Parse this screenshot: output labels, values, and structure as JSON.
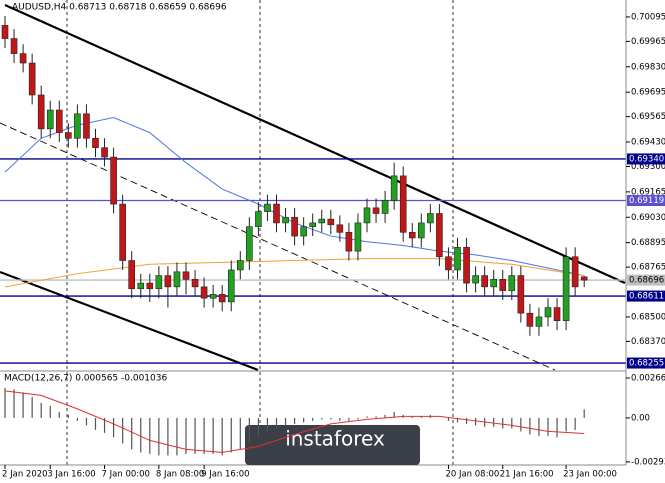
{
  "chart_data": {
    "type": "candlestick",
    "title": "AUDUSD,H4  0.68713 0.68718 0.68659 0.68696",
    "watermark": "instaforex",
    "ylim": [
      0.68218,
      0.70185
    ],
    "yticks": [
      0.70095,
      {
        "value": 0.69965,
        "label": "0.69965"
      },
      {
        "value": 0.6983,
        "label": "0.69830"
      },
      0.69695,
      0.69565,
      {
        "value": 0.6943,
        "label": "0.69430"
      },
      {
        "value": 0.693,
        "label": "0.69300"
      },
      0.69165,
      {
        "value": 0.6903,
        "label": "0.69030"
      },
      0.68895,
      0.68765,
      {
        "value": 0.685,
        "label": "0.68500"
      },
      {
        "value": 0.6837,
        "label": "0.68370"
      }
    ],
    "levels": [
      {
        "value": 0.6934,
        "label": "0.69340",
        "color": "#00008b"
      },
      {
        "value": 0.69119,
        "label": "0.69119",
        "color": "#5a4fcf"
      },
      {
        "value": 0.68611,
        "label": "0.68611",
        "color": "#00008b"
      },
      {
        "value": 0.68255,
        "label": "0.68255",
        "color": "#00008b"
      },
      {
        "value": 0.68696,
        "label": "0.68696",
        "color": "#c0c0c0"
      }
    ],
    "categories": [
      "2 Jan 2020",
      null,
      null,
      null,
      null,
      "3 Jan 16:00",
      null,
      null,
      null,
      null,
      null,
      "7 Jan 00:00",
      null,
      null,
      null,
      null,
      null,
      "8 Jan 08:00",
      null,
      null,
      null,
      null,
      "9 Jan 16:00",
      null,
      null,
      null,
      null,
      null,
      null,
      null,
      null,
      null,
      null,
      null,
      null,
      null,
      null,
      null,
      null,
      null,
      null,
      null,
      null,
      null,
      null,
      null,
      null,
      null,
      null,
      "20 Jan 08:00",
      null,
      null,
      null,
      null,
      null,
      "21 Jan 16:00",
      null,
      null,
      null,
      null,
      null,
      null,
      "23 Jan 00:00",
      null,
      null
    ],
    "up_color": "#22a022",
    "down_color": "#c01818",
    "open": [
      0.7005,
      0.6998,
      0.699,
      0.6985,
      0.6968,
      0.695,
      0.696,
      0.6948,
      0.6945,
      0.6958,
      0.6945,
      0.694,
      0.6935,
      0.691,
      0.688,
      0.6865,
      0.6868,
      0.6865,
      0.6872,
      0.6866,
      0.6874,
      0.687,
      0.6866,
      0.686,
      0.6862,
      0.6858,
      0.6875,
      0.688,
      0.6898,
      0.6906,
      0.691,
      0.69,
      0.6903,
      0.6893,
      0.6898,
      0.69,
      0.6902,
      0.6899,
      0.6895,
      0.6885,
      0.69,
      0.6908,
      0.6905,
      0.6912,
      0.6925,
      0.6895,
      0.6892,
      0.69,
      0.6905,
      0.6882,
      0.6875,
      0.6887,
      0.6868,
      0.6872,
      0.6866,
      0.687,
      0.6864,
      0.6872,
      0.6852,
      0.6845,
      0.685,
      0.6855,
      0.6848,
      0.6882,
      0.68713
    ],
    "high": [
      0.701,
      0.7003,
      0.6995,
      0.699,
      0.6973,
      0.6965,
      0.6965,
      0.6953,
      0.6963,
      0.6963,
      0.695,
      0.6945,
      0.694,
      0.6915,
      0.6885,
      0.6873,
      0.6873,
      0.6877,
      0.6877,
      0.6879,
      0.6879,
      0.6875,
      0.6871,
      0.6867,
      0.6867,
      0.688,
      0.6885,
      0.6903,
      0.6911,
      0.6915,
      0.6915,
      0.6908,
      0.6908,
      0.6903,
      0.6905,
      0.6907,
      0.6907,
      0.6904,
      0.69,
      0.6905,
      0.6913,
      0.6913,
      0.6917,
      0.6932,
      0.693,
      0.69,
      0.6905,
      0.691,
      0.691,
      0.6887,
      0.6892,
      0.6892,
      0.6877,
      0.6877,
      0.6875,
      0.6875,
      0.6877,
      0.6877,
      0.6857,
      0.6855,
      0.686,
      0.686,
      0.6887,
      0.6887,
      0.68718
    ],
    "low": [
      0.6993,
      0.6985,
      0.698,
      0.6963,
      0.6945,
      0.6945,
      0.6943,
      0.694,
      0.694,
      0.694,
      0.6935,
      0.693,
      0.6905,
      0.6875,
      0.686,
      0.686,
      0.6858,
      0.686,
      0.6855,
      0.6861,
      0.6862,
      0.6861,
      0.6855,
      0.6855,
      0.6853,
      0.6853,
      0.687,
      0.6875,
      0.6893,
      0.6901,
      0.6895,
      0.6895,
      0.6888,
      0.6888,
      0.6893,
      0.6895,
      0.6894,
      0.689,
      0.688,
      0.688,
      0.6895,
      0.69,
      0.69,
      0.6907,
      0.689,
      0.6887,
      0.6887,
      0.6895,
      0.6877,
      0.687,
      0.687,
      0.6863,
      0.6863,
      0.6861,
      0.6861,
      0.6859,
      0.6859,
      0.6847,
      0.684,
      0.684,
      0.6845,
      0.6843,
      0.6843,
      0.6861,
      0.68659
    ],
    "close": [
      0.6998,
      0.699,
      0.6985,
      0.6968,
      0.695,
      0.696,
      0.6948,
      0.6945,
      0.6958,
      0.6945,
      0.694,
      0.6935,
      0.691,
      0.688,
      0.6865,
      0.6868,
      0.6865,
      0.6872,
      0.6866,
      0.6874,
      0.687,
      0.6866,
      0.686,
      0.6862,
      0.6858,
      0.6875,
      0.688,
      0.6898,
      0.6906,
      0.691,
      0.69,
      0.6903,
      0.6893,
      0.6898,
      0.69,
      0.6902,
      0.6899,
      0.6895,
      0.6885,
      0.69,
      0.6908,
      0.6905,
      0.6912,
      0.6925,
      0.6895,
      0.6892,
      0.69,
      0.6905,
      0.6882,
      0.6875,
      0.6887,
      0.6868,
      0.6872,
      0.6866,
      0.687,
      0.6864,
      0.6872,
      0.6852,
      0.6845,
      0.685,
      0.6855,
      0.6848,
      0.6882,
      0.6866,
      0.68696
    ],
    "lines": [
      {
        "color": "#4a78e0",
        "x": [
          0,
          4,
          8,
          12,
          16,
          20,
          24,
          28,
          32,
          36,
          40,
          44,
          48,
          52,
          56,
          60,
          64
        ],
        "values": [
          0.6927,
          0.6945,
          0.6952,
          0.6956,
          0.6948,
          0.6932,
          0.6918,
          0.691,
          0.69,
          0.6893,
          0.689,
          0.6888,
          0.6885,
          0.6883,
          0.688,
          0.6876,
          0.6872
        ]
      },
      {
        "color": "#f0a030",
        "x": [
          0,
          8,
          16,
          24,
          32,
          40,
          48,
          56,
          64
        ],
        "values": [
          0.6866,
          0.6873,
          0.6878,
          0.6879,
          0.688,
          0.6881,
          0.6881,
          0.6878,
          0.6872
        ]
      }
    ],
    "macd": {
      "label": "MACD(12,26,7) 0.000565 -0.001036",
      "y2lim": [
        -0.00314,
        0.00306
      ],
      "y2ticks": [
        0.002661,
        {
          "value": 0,
          "label": "0.00"
        },
        -0.002935
      ],
      "values": [
        0.002,
        0.0019,
        0.0017,
        0.0014,
        0.001,
        0.0008,
        0.0004,
        0.0002,
        -0.0002,
        -0.0005,
        -0.0008,
        -0.001,
        -0.0013,
        -0.0017,
        -0.0021,
        -0.0023,
        -0.0024,
        -0.0025,
        -0.0025,
        -0.0025,
        -0.0024,
        -0.0024,
        -0.0024,
        -0.0024,
        -0.0025,
        -0.0023,
        -0.0021,
        -0.0017,
        -0.0013,
        -0.0009,
        -0.0007,
        -0.0005,
        -0.0004,
        -0.0003,
        -0.0002,
        -0.0001,
        -0.0001,
        -0.0002,
        -0.0002,
        -0.0001,
        0.0001,
        0.0001,
        0.0002,
        0.0004,
        0.0002,
        0.0001,
        0.0001,
        0.0002,
        0,
        -0.0002,
        -0.0003,
        -0.0004,
        -0.0005,
        -0.0006,
        -0.0006,
        -0.0007,
        -0.0007,
        -0.0009,
        -0.0011,
        -0.0012,
        -0.0012,
        -0.0013,
        -0.0009,
        -0.0008,
        0.000565
      ],
      "signal": {
        "color": "#e03030",
        "x": [
          0,
          4,
          8,
          12,
          16,
          20,
          24,
          28,
          32,
          36,
          40,
          44,
          48,
          52,
          56,
          60,
          64
        ],
        "values": [
          0.0018,
          0.0015,
          0.0006,
          -0.0004,
          -0.0015,
          -0.0021,
          -0.0023,
          -0.0019,
          -0.0011,
          -0.0004,
          -0.0001,
          0.0001,
          0.0001,
          -0.0002,
          -0.0005,
          -0.0009,
          -0.001036
        ]
      }
    }
  }
}
